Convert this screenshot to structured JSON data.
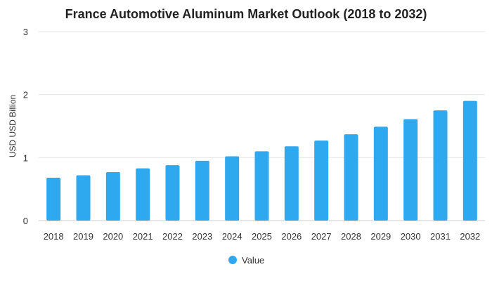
{
  "chart_data": {
    "type": "bar",
    "title": "France Automotive Aluminum Market Outlook (2018 to 2032)",
    "xlabel": "",
    "ylabel": "USD USD Billion",
    "categories": [
      "2018",
      "2019",
      "2020",
      "2021",
      "2022",
      "2023",
      "2024",
      "2025",
      "2026",
      "2027",
      "2028",
      "2029",
      "2030",
      "2031",
      "2032"
    ],
    "series": [
      {
        "name": "Value",
        "values": [
          0.68,
          0.72,
          0.77,
          0.83,
          0.88,
          0.95,
          1.02,
          1.1,
          1.18,
          1.27,
          1.37,
          1.49,
          1.61,
          1.75,
          1.9
        ]
      }
    ],
    "ylim": [
      0,
      3
    ],
    "yticks": [
      0,
      1,
      2,
      3
    ],
    "grid": true,
    "legend": "bottom",
    "colors": {
      "bar": "#2ea8ef",
      "grid": "#e6e6e6",
      "axis": "#cccccc"
    }
  }
}
